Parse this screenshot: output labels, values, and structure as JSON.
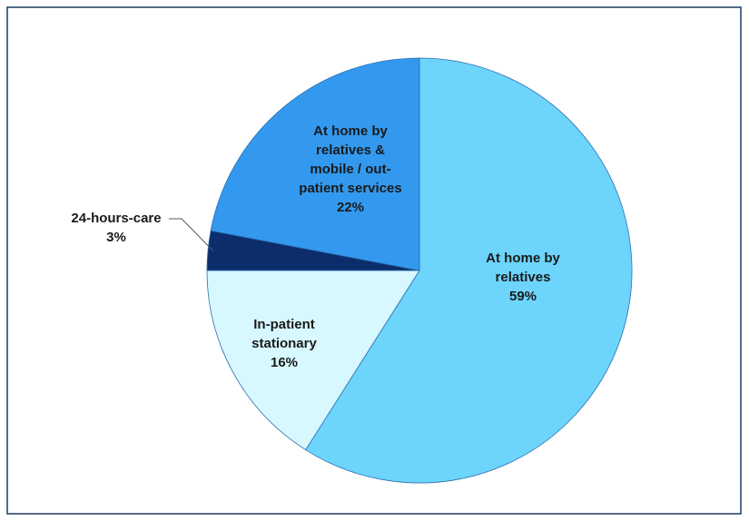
{
  "chart_data": {
    "type": "pie",
    "categories": [
      [
        "At home by",
        "relatives"
      ],
      [
        "In-patient",
        "stationary"
      ],
      [
        "24-hours-care"
      ],
      [
        "At home by",
        "relatives &",
        "mobile / out-",
        "patient services"
      ]
    ],
    "values": [
      59,
      16,
      3,
      22
    ],
    "value_labels": [
      "59%",
      "16%",
      "3%",
      "22%"
    ],
    "colors": [
      "#6dd4fb",
      "#d7f8fe",
      "#0c2d6b",
      "#3399ef"
    ]
  }
}
